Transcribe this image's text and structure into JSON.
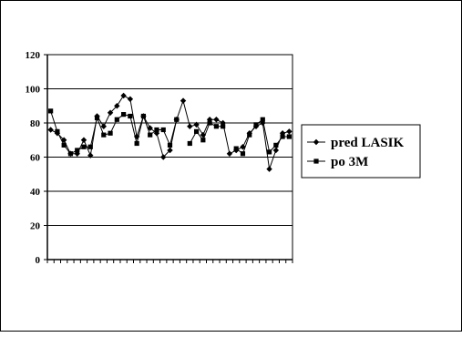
{
  "chart_data": {
    "type": "line",
    "ylim": [
      0,
      120
    ],
    "yticks": [
      0,
      20,
      40,
      60,
      80,
      100,
      120
    ],
    "grid": true,
    "legend_position": "right",
    "series": [
      {
        "name": "pred LASIK",
        "marker": "diamond",
        "color": "#000000",
        "values": [
          76,
          74,
          70,
          62,
          62,
          70,
          61,
          84,
          78,
          86,
          90,
          96,
          94,
          72,
          84,
          77,
          74,
          60,
          64,
          82,
          93,
          78,
          79,
          73,
          82,
          82,
          80,
          62,
          64,
          66,
          74,
          78,
          80,
          53,
          64,
          74,
          75
        ]
      },
      {
        "name": "po 3M",
        "marker": "square",
        "color": "#000000",
        "values": [
          87,
          75,
          67,
          62,
          64,
          66,
          66,
          83,
          73,
          74,
          82,
          85,
          84,
          68,
          84,
          73,
          76,
          76,
          67,
          82,
          null,
          68,
          75,
          70,
          80,
          78,
          78,
          null,
          65,
          62,
          73,
          79,
          82,
          63,
          67,
          72,
          72
        ]
      }
    ]
  }
}
